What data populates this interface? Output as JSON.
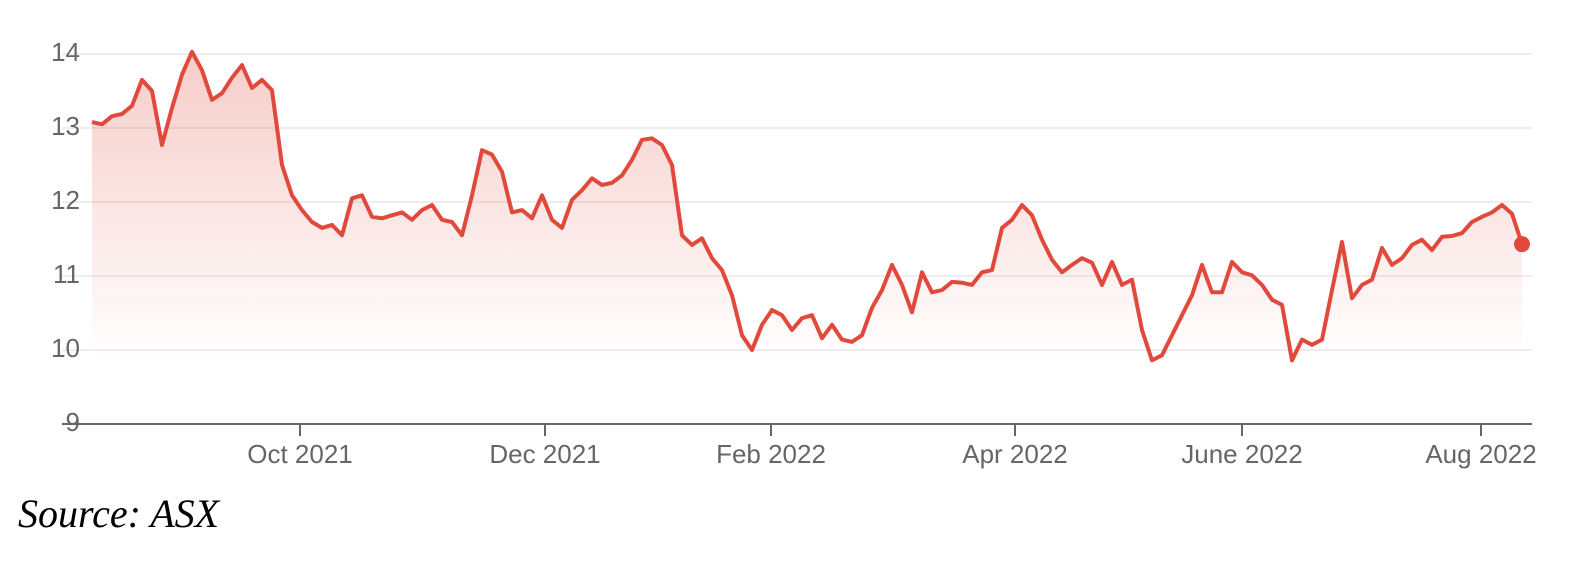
{
  "chart_data": {
    "type": "line",
    "source": "Source: ASX",
    "color": "#e0493b",
    "grid": true,
    "ylim": [
      9,
      14
    ],
    "yticks": [
      9,
      10,
      11,
      12,
      13,
      14
    ],
    "xlim": [
      0,
      143
    ],
    "xticks": [
      {
        "value": 20.8,
        "label": "Oct 2021"
      },
      {
        "value": 45.3,
        "label": "Dec 2021"
      },
      {
        "value": 67.9,
        "label": "Feb 2022"
      },
      {
        "value": 92.3,
        "label": "Apr 2022"
      },
      {
        "value": 115,
        "label": "June 2022"
      },
      {
        "value": 138.9,
        "label": "Aug 2022"
      }
    ],
    "values": [
      13.08,
      13.05,
      13.16,
      13.19,
      13.3,
      13.65,
      13.5,
      12.77,
      13.27,
      13.72,
      14.03,
      13.78,
      13.38,
      13.47,
      13.68,
      13.85,
      13.54,
      13.65,
      13.51,
      12.5,
      12.09,
      11.89,
      11.73,
      11.65,
      11.69,
      11.55,
      12.05,
      12.09,
      11.8,
      11.78,
      11.82,
      11.86,
      11.76,
      11.89,
      11.96,
      11.76,
      11.73,
      11.55,
      12.09,
      12.7,
      12.64,
      12.41,
      11.86,
      11.89,
      11.78,
      12.09,
      11.76,
      11.65,
      12.03,
      12.16,
      12.32,
      12.23,
      12.26,
      12.36,
      12.57,
      12.84,
      12.86,
      12.77,
      12.5,
      11.55,
      11.42,
      11.51,
      11.24,
      11.08,
      10.74,
      10.2,
      10.0,
      10.34,
      10.54,
      10.47,
      10.27,
      10.43,
      10.47,
      10.16,
      10.34,
      10.14,
      10.11,
      10.2,
      10.57,
      10.81,
      11.15,
      10.88,
      10.51,
      11.05,
      10.78,
      10.81,
      10.92,
      10.91,
      10.88,
      11.05,
      11.08,
      11.65,
      11.76,
      11.96,
      11.82,
      11.49,
      11.22,
      11.05,
      11.15,
      11.24,
      11.18,
      10.88,
      11.19,
      10.88,
      10.95,
      10.27,
      9.86,
      9.93,
      10.2,
      10.47,
      10.74,
      11.15,
      10.78,
      10.78,
      11.19,
      11.05,
      11.01,
      10.88,
      10.68,
      10.61,
      9.86,
      10.14,
      10.07,
      10.14,
      10.81,
      11.46,
      10.7,
      10.88,
      10.95,
      11.38,
      11.15,
      11.24,
      11.42,
      11.49,
      11.35,
      11.53,
      11.54,
      11.58,
      11.73,
      11.8,
      11.86,
      11.96,
      11.84,
      11.43
    ]
  }
}
